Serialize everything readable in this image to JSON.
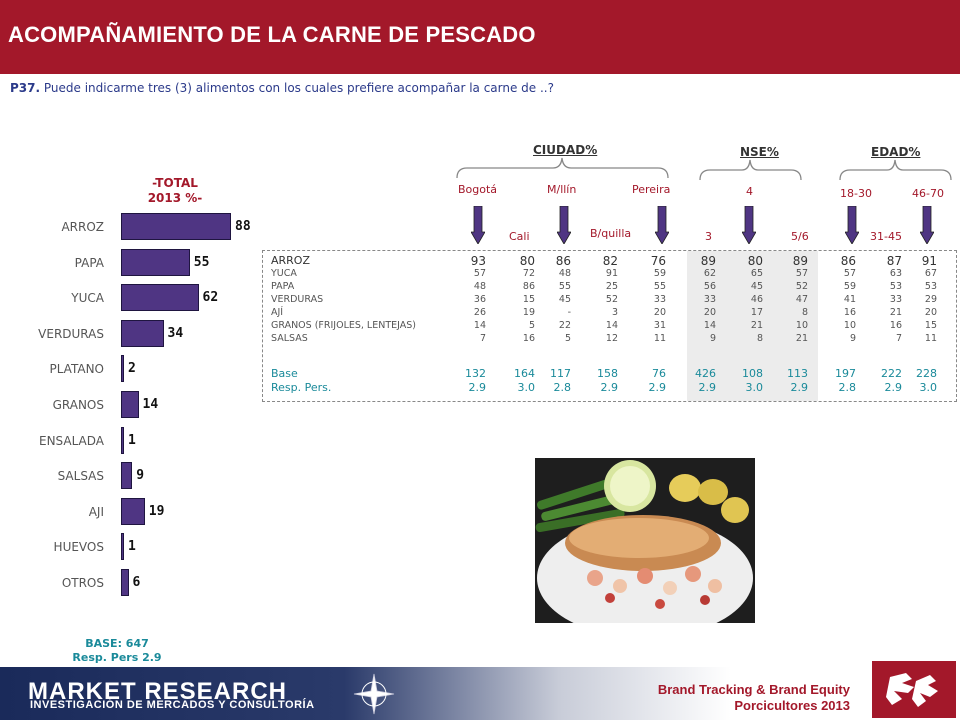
{
  "header": {
    "title": "ACOMPAÑAMIENTO DE LA CARNE DE  PESCADO"
  },
  "question": {
    "code": "P37.",
    "text": "Puede indicarme tres (3) alimentos con los cuales prefiere acompañar la carne de ..?"
  },
  "total_head": {
    "line1": "-TOTAL",
    "line2": "2013 %-"
  },
  "base_note": {
    "line1": "BASE: 647",
    "line2": "Resp. Pers   2.9"
  },
  "chart_data": {
    "type": "bar",
    "orientation": "horizontal",
    "title": "-TOTAL 2013 %-",
    "categories": [
      "ARROZ",
      "PAPA",
      "YUCA",
      "VERDURAS",
      "PLATANO",
      "GRANOS",
      "ENSALADA",
      "SALSAS",
      "AJI",
      "HUEVOS",
      "OTROS"
    ],
    "values": [
      88,
      55,
      62,
      34,
      2,
      14,
      1,
      9,
      19,
      1,
      6
    ],
    "xlim": [
      0,
      100
    ],
    "grid": false,
    "bar_color": "#4f3583"
  },
  "groups": {
    "ciudad": "CIUDAD%",
    "nse": "NSE%",
    "edad": "EDAD%"
  },
  "columns": {
    "bogota": "Bogotá",
    "cali": "Cali",
    "medellin": "M/llín",
    "barranquilla": "B/quilla",
    "pereira": "Pereira",
    "nse3": "3",
    "nse4": "4",
    "nse56": "5/6",
    "edad1830": "18-30",
    "edad3145": "31-45",
    "edad4670": "46-70"
  },
  "table": {
    "rows": [
      {
        "label": "ARROZ",
        "main": true,
        "values": [
          "93",
          "80",
          "86",
          "82",
          "76",
          "89",
          "80",
          "89",
          "86",
          "87",
          "91"
        ]
      },
      {
        "label": "YUCA",
        "values": [
          "57",
          "72",
          "48",
          "91",
          "59",
          "62",
          "65",
          "57",
          "57",
          "63",
          "67"
        ]
      },
      {
        "label": "PAPA",
        "values": [
          "48",
          "86",
          "55",
          "25",
          "55",
          "56",
          "45",
          "52",
          "59",
          "53",
          "53"
        ]
      },
      {
        "label": "VERDURAS",
        "values": [
          "36",
          "15",
          "45",
          "52",
          "33",
          "33",
          "46",
          "47",
          "41",
          "33",
          "29"
        ]
      },
      {
        "label": "AJÍ",
        "values": [
          "26",
          "19",
          "-",
          "3",
          "20",
          "20",
          "17",
          "8",
          "16",
          "21",
          "20"
        ]
      },
      {
        "label": "GRANOS (FRIJOLES, LENTEJAS)",
        "values": [
          "14",
          "5",
          "22",
          "14",
          "31",
          "14",
          "21",
          "10",
          "10",
          "16",
          "15"
        ]
      },
      {
        "label": "SALSAS",
        "values": [
          "7",
          "16",
          "5",
          "12",
          "11",
          "9",
          "8",
          "21",
          "9",
          "7",
          "11"
        ]
      }
    ],
    "base": {
      "label": "Base",
      "values": [
        "132",
        "164",
        "117",
        "158",
        "76",
        "426",
        "108",
        "113",
        "197",
        "222",
        "228"
      ]
    },
    "resp": {
      "label": "Resp. Pers.",
      "values": [
        "2.9",
        "3.0",
        "2.8",
        "2.9",
        "2.9",
        "2.9",
        "3.0",
        "2.9",
        "2.8",
        "2.9",
        "3.0"
      ]
    }
  },
  "footer": {
    "brand": "MARKET RESEARCH",
    "brand_sub": "INVESTIGACIÓN DE MERCADOS Y CONSULTORÍA",
    "study_line1": "Brand Tracking & Brand Equity",
    "study_line2": "Porcicultores 2013"
  },
  "colors": {
    "accent": "#a3182a",
    "bar": "#4f3583",
    "teal": "#1a8a9a"
  }
}
